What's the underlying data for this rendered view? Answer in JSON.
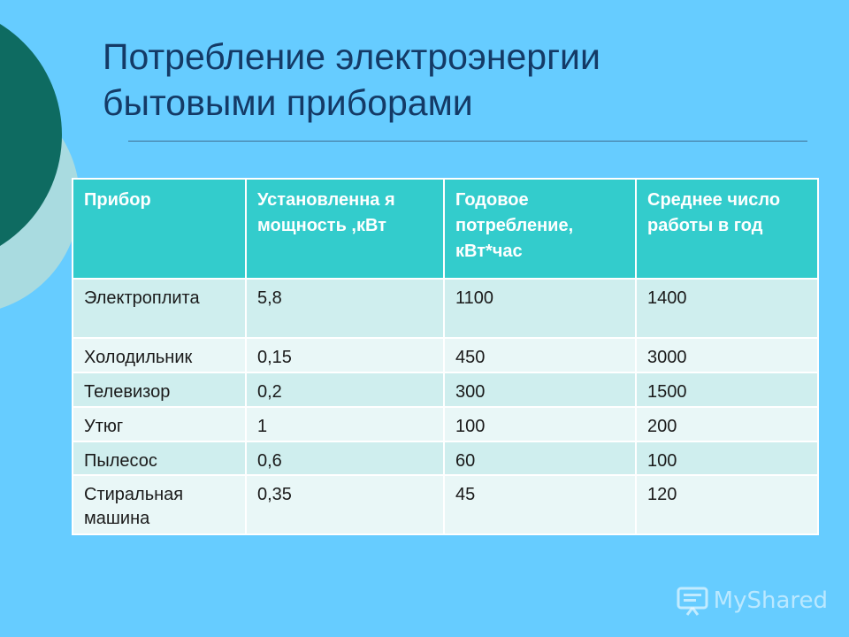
{
  "title": {
    "line1": "Потребление электроэнергии",
    "line2": "бытовыми приборами"
  },
  "table": {
    "headers": [
      "Прибор",
      "Установленна я мощность ,кВт",
      "Годовое потребление, кВт*час",
      "Среднее число работы в год"
    ],
    "rows": [
      [
        "Электроплита",
        "5,8",
        "1100",
        "1400"
      ],
      [
        "Холодильник",
        "0,15",
        "450",
        "3000"
      ],
      [
        "Телевизор",
        "0,2",
        "300",
        "1500"
      ],
      [
        "Утюг",
        "1",
        "100",
        "200"
      ],
      [
        "Пылесос",
        "0,6",
        "60",
        "100"
      ],
      [
        "Стиральная машина",
        "0,35",
        "45",
        "120"
      ]
    ]
  },
  "watermark": {
    "text": "MyShared"
  },
  "colors": {
    "background": "#66ccff",
    "header": "#33cccc",
    "row_a": "#cfeeee",
    "row_b": "#e9f7f7",
    "title": "#143a66"
  }
}
